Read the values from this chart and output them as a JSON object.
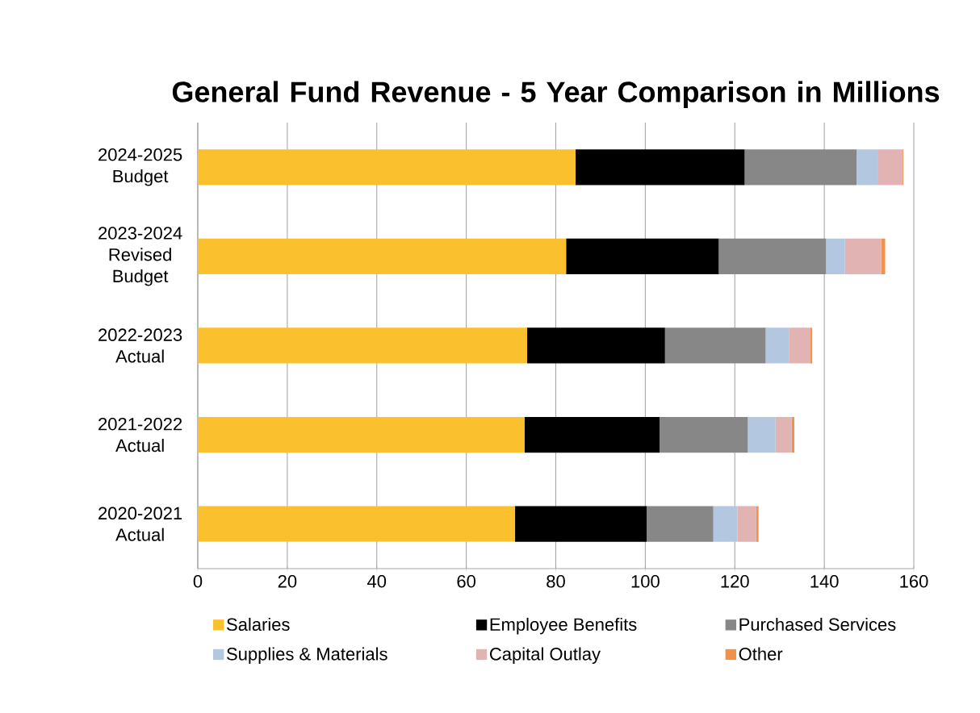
{
  "chart_data": {
    "type": "bar",
    "orientation": "horizontal",
    "stacked": true,
    "title": "General Fund Revenue - 5 Year Comparison in Millions",
    "categories": [
      "2024-2025 Budget",
      "2023-2024 Revised Budget",
      "2022-2023 Actual",
      "2021-2022 Actual",
      "2020-2021 Actual"
    ],
    "series": [
      {
        "name": "Salaries",
        "color": "#fbc02d",
        "values": [
          84.4,
          82.3,
          73.6,
          73.0,
          70.9
        ]
      },
      {
        "name": "Employee Benefits",
        "color": "#000000",
        "values": [
          37.8,
          34.1,
          30.8,
          30.2,
          29.4
        ]
      },
      {
        "name": "Purchased Services",
        "color": "#878787",
        "values": [
          25.0,
          24.0,
          22.5,
          19.7,
          14.9
        ]
      },
      {
        "name": "Supplies & Materials",
        "color": "#b4c7e0",
        "values": [
          4.7,
          4.2,
          5.3,
          6.2,
          5.4
        ]
      },
      {
        "name": "Capital Outlay",
        "color": "#e2b3b3",
        "values": [
          5.6,
          8.1,
          4.7,
          3.6,
          4.2
        ]
      },
      {
        "name": "Other",
        "color": "#f0924a",
        "values": [
          0.2,
          0.9,
          0.4,
          0.6,
          0.5
        ]
      }
    ],
    "xlim": [
      0,
      160
    ],
    "xticks": [
      0,
      20,
      40,
      60,
      80,
      100,
      120,
      140,
      160
    ],
    "grid": "x",
    "legend": "bottom"
  }
}
